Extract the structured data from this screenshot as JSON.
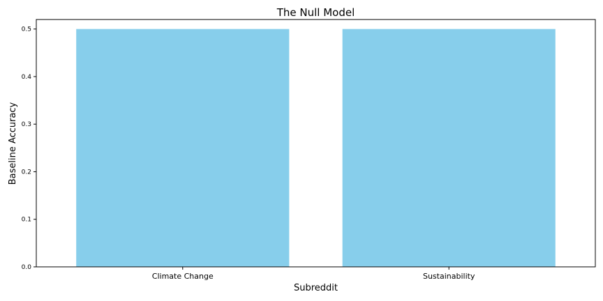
{
  "chart_data": {
    "type": "bar",
    "title": "The Null Model",
    "xlabel": "Subreddit",
    "ylabel": "Baseline Accuracy",
    "categories": [
      "Climate Change",
      "Sustainability"
    ],
    "values": [
      0.5,
      0.5
    ],
    "ylim": [
      0,
      0.52
    ],
    "yticks": [
      "0.0",
      "0.1",
      "0.2",
      "0.3",
      "0.4",
      "0.5"
    ],
    "bar_color": "#87ceeb",
    "grid": false
  }
}
